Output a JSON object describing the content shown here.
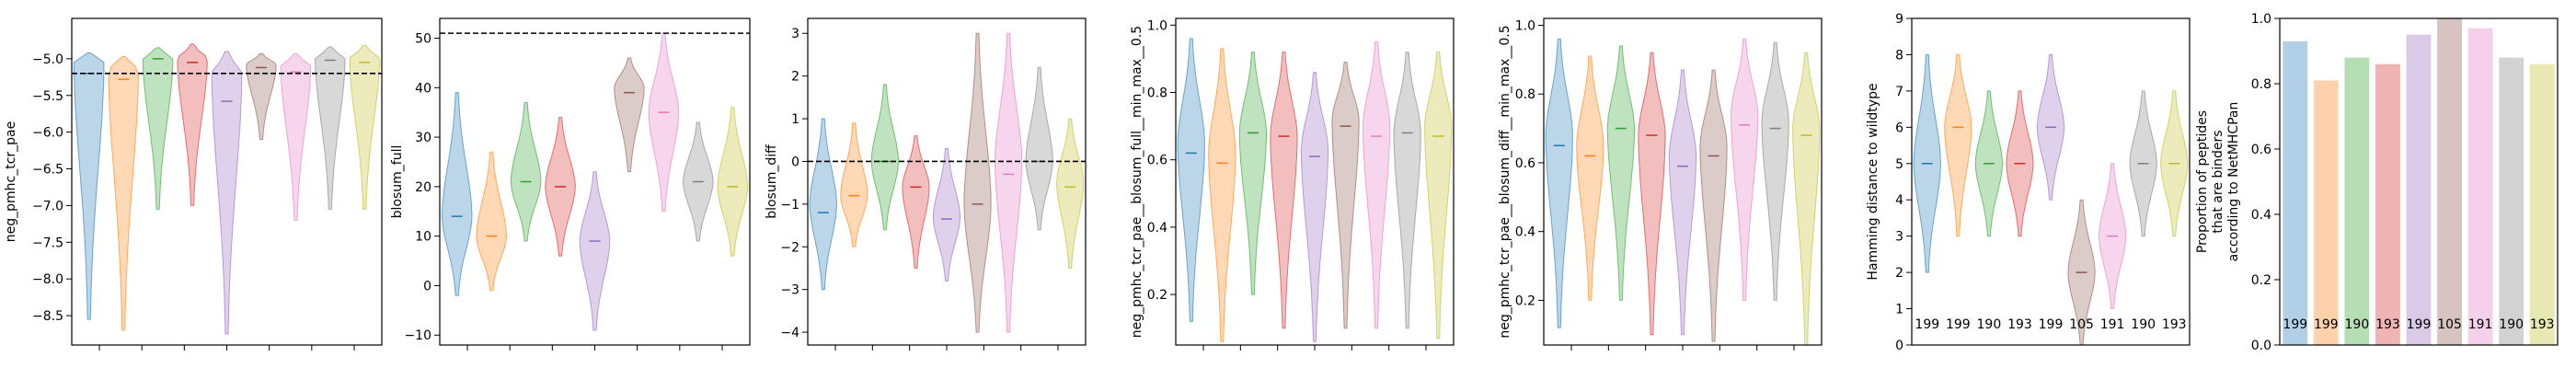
{
  "palette": [
    "#1f77b4",
    "#ff7f0e",
    "#2ca02c",
    "#d62728",
    "#9467bd",
    "#8c564b",
    "#e377c2",
    "#7f7f7f",
    "#bcbd22"
  ],
  "chart_data": [
    {
      "type": "violin",
      "ylabel": "neg_pmhc_tcr_pae",
      "ylim": [
        -8.9,
        -4.45
      ],
      "yticks": [
        -8.5,
        -8.0,
        -7.5,
        -7.0,
        -6.5,
        -6.0,
        -5.5,
        -5.0
      ],
      "ytick_labels": [
        "−8.5",
        "−8.0",
        "−7.5",
        "−7.0",
        "−6.5",
        "−6.0",
        "−5.5",
        "−5.0"
      ],
      "hline": -5.2,
      "xticks_count": 7,
      "series": [
        {
          "min": -8.55,
          "max": -4.92,
          "median": -5.2,
          "peak": -5.05
        },
        {
          "min": -8.7,
          "max": -4.97,
          "median": -5.28,
          "peak": -5.15
        },
        {
          "min": -7.05,
          "max": -4.85,
          "median": -5.0,
          "peak": -5.0
        },
        {
          "min": -7.0,
          "max": -4.8,
          "median": -5.05,
          "peak": -5.0
        },
        {
          "min": -8.75,
          "max": -4.9,
          "median": -5.58,
          "peak": -5.2
        },
        {
          "min": -6.1,
          "max": -4.93,
          "median": -5.12,
          "peak": -5.08
        },
        {
          "min": -7.2,
          "max": -4.93,
          "median": -5.18,
          "peak": -5.1
        },
        {
          "min": -7.05,
          "max": -4.84,
          "median": -5.02,
          "peak": -5.0
        },
        {
          "min": -7.05,
          "max": -4.82,
          "median": -5.05,
          "peak": -5.0
        }
      ]
    },
    {
      "type": "violin",
      "ylabel": "blosum_full",
      "ylim": [
        -12,
        54
      ],
      "yticks": [
        -10,
        0,
        10,
        20,
        30,
        40,
        50
      ],
      "ytick_labels": [
        "−10",
        "0",
        "10",
        "20",
        "30",
        "40",
        "50"
      ],
      "hline": 51,
      "xticks_count": 7,
      "series": [
        {
          "min": -2,
          "max": 39,
          "median": 14,
          "peak": 14
        },
        {
          "min": -1,
          "max": 27,
          "median": 10,
          "peak": 10
        },
        {
          "min": 9,
          "max": 37,
          "median": 21,
          "peak": 21
        },
        {
          "min": 6,
          "max": 34,
          "median": 20,
          "peak": 20
        },
        {
          "min": -9,
          "max": 23,
          "median": 9,
          "peak": 9
        },
        {
          "min": 23,
          "max": 46,
          "median": 39,
          "peak": 40
        },
        {
          "min": 15,
          "max": 51,
          "median": 35,
          "peak": 35
        },
        {
          "min": 9,
          "max": 33,
          "median": 21,
          "peak": 21
        },
        {
          "min": 6,
          "max": 36,
          "median": 20,
          "peak": 20
        }
      ]
    },
    {
      "type": "violin",
      "ylabel": "blosum_diff",
      "ylim": [
        -4.3,
        3.35
      ],
      "yticks": [
        -4,
        -3,
        -2,
        -1,
        0,
        1,
        2,
        3
      ],
      "ytick_labels": [
        "−4",
        "−3",
        "−2",
        "−1",
        "0",
        "1",
        "2",
        "3"
      ],
      "hline": 0,
      "xticks_count": 7,
      "series": [
        {
          "min": -3.0,
          "max": 1.0,
          "median": -1.2,
          "peak": -1.0
        },
        {
          "min": -2.0,
          "max": 0.9,
          "median": -0.8,
          "peak": -0.8
        },
        {
          "min": -1.6,
          "max": 1.8,
          "median": 0.0,
          "peak": 0.0
        },
        {
          "min": -2.5,
          "max": 0.6,
          "median": -0.6,
          "peak": -0.6
        },
        {
          "min": -2.8,
          "max": 0.3,
          "median": -1.35,
          "peak": -1.3
        },
        {
          "min": -4.0,
          "max": 3.0,
          "median": -1.0,
          "peak": -1.0
        },
        {
          "min": -4.0,
          "max": 3.0,
          "median": -0.3,
          "peak": 0.0
        },
        {
          "min": -1.6,
          "max": 2.2,
          "median": 0.0,
          "peak": 0.0
        },
        {
          "min": -2.5,
          "max": 1.0,
          "median": -0.6,
          "peak": -0.5
        }
      ]
    },
    {
      "type": "violin",
      "ylabel": "neg_pmhc_tcr_pae__blosum_full__min_max__0.5",
      "ylim": [
        0.05,
        1.02
      ],
      "yticks": [
        0.2,
        0.4,
        0.6,
        0.8,
        1.0
      ],
      "ytick_labels": [
        "0.2",
        "0.4",
        "0.6",
        "0.8",
        "1.0"
      ],
      "hline": null,
      "xticks_count": 7,
      "series": [
        {
          "min": 0.12,
          "max": 0.96,
          "median": 0.62,
          "peak": 0.65
        },
        {
          "min": 0.06,
          "max": 0.93,
          "median": 0.59,
          "peak": 0.62
        },
        {
          "min": 0.2,
          "max": 0.92,
          "median": 0.68,
          "peak": 0.68
        },
        {
          "min": 0.1,
          "max": 0.92,
          "median": 0.67,
          "peak": 0.67
        },
        {
          "min": 0.06,
          "max": 0.86,
          "median": 0.61,
          "peak": 0.63
        },
        {
          "min": 0.1,
          "max": 0.89,
          "median": 0.7,
          "peak": 0.72
        },
        {
          "min": 0.1,
          "max": 0.95,
          "median": 0.67,
          "peak": 0.7
        },
        {
          "min": 0.1,
          "max": 0.92,
          "median": 0.68,
          "peak": 0.68
        },
        {
          "min": 0.07,
          "max": 0.92,
          "median": 0.67,
          "peak": 0.7
        }
      ]
    },
    {
      "type": "violin",
      "ylabel": "neg_pmhc_tcr_pae__blosum_diff__min_max__0.5",
      "ylim": [
        0.07,
        1.02
      ],
      "yticks": [
        0.2,
        0.4,
        0.6,
        0.8,
        1.0
      ],
      "ytick_labels": [
        "0.2",
        "0.4",
        "0.6",
        "0.8",
        "1.0"
      ],
      "hline": null,
      "xticks_count": 7,
      "series": [
        {
          "min": 0.12,
          "max": 0.96,
          "median": 0.65,
          "peak": 0.68
        },
        {
          "min": 0.2,
          "max": 0.91,
          "median": 0.62,
          "peak": 0.65
        },
        {
          "min": 0.2,
          "max": 0.94,
          "median": 0.7,
          "peak": 0.7
        },
        {
          "min": 0.1,
          "max": 0.92,
          "median": 0.68,
          "peak": 0.68
        },
        {
          "min": 0.1,
          "max": 0.87,
          "median": 0.59,
          "peak": 0.62
        },
        {
          "min": 0.08,
          "max": 0.87,
          "median": 0.62,
          "peak": 0.65
        },
        {
          "min": 0.2,
          "max": 0.96,
          "median": 0.71,
          "peak": 0.74
        },
        {
          "min": 0.2,
          "max": 0.95,
          "median": 0.7,
          "peak": 0.72
        },
        {
          "min": 0.07,
          "max": 0.92,
          "median": 0.68,
          "peak": 0.7
        }
      ]
    },
    {
      "type": "violin",
      "ylabel": "Hamming distance to wildtype",
      "ylim": [
        0,
        9
      ],
      "yticks": [
        0,
        1,
        2,
        3,
        4,
        5,
        6,
        7,
        8,
        9
      ],
      "ytick_labels": [
        "0",
        "1",
        "2",
        "3",
        "4",
        "5",
        "6",
        "7",
        "8",
        "9"
      ],
      "hline": null,
      "xticks_count": 0,
      "series": [
        {
          "min": 2,
          "max": 8,
          "median": 5,
          "peak": 5
        },
        {
          "min": 3,
          "max": 8,
          "median": 6,
          "peak": 6
        },
        {
          "min": 3,
          "max": 7,
          "median": 5,
          "peak": 5
        },
        {
          "min": 3,
          "max": 7,
          "median": 5,
          "peak": 5
        },
        {
          "min": 4,
          "max": 8,
          "median": 6,
          "peak": 6
        },
        {
          "min": 0,
          "max": 4,
          "median": 2,
          "peak": 2
        },
        {
          "min": 1,
          "max": 5,
          "median": 3,
          "peak": 3
        },
        {
          "min": 3,
          "max": 7,
          "median": 5,
          "peak": 5
        },
        {
          "min": 3,
          "max": 7,
          "median": 5,
          "peak": 5
        }
      ],
      "counts": [
        "199",
        "199",
        "190",
        "193",
        "199",
        "105",
        "191",
        "190",
        "193"
      ]
    },
    {
      "type": "bar",
      "ylabel_lines": [
        "Proportion of peptides",
        "that are binders",
        "according to NetMHCPan"
      ],
      "ylim": [
        0,
        1.0
      ],
      "yticks": [
        0,
        0.2,
        0.4,
        0.6,
        0.8,
        1.0
      ],
      "ytick_labels": [
        "0.0",
        "0.2",
        "0.4",
        "0.6",
        "0.8",
        "1.0"
      ],
      "values": [
        0.93,
        0.81,
        0.88,
        0.86,
        0.95,
        1.0,
        0.97,
        0.88,
        0.86
      ],
      "counts": [
        "199",
        "199",
        "190",
        "193",
        "199",
        "105",
        "191",
        "190",
        "193"
      ]
    }
  ]
}
